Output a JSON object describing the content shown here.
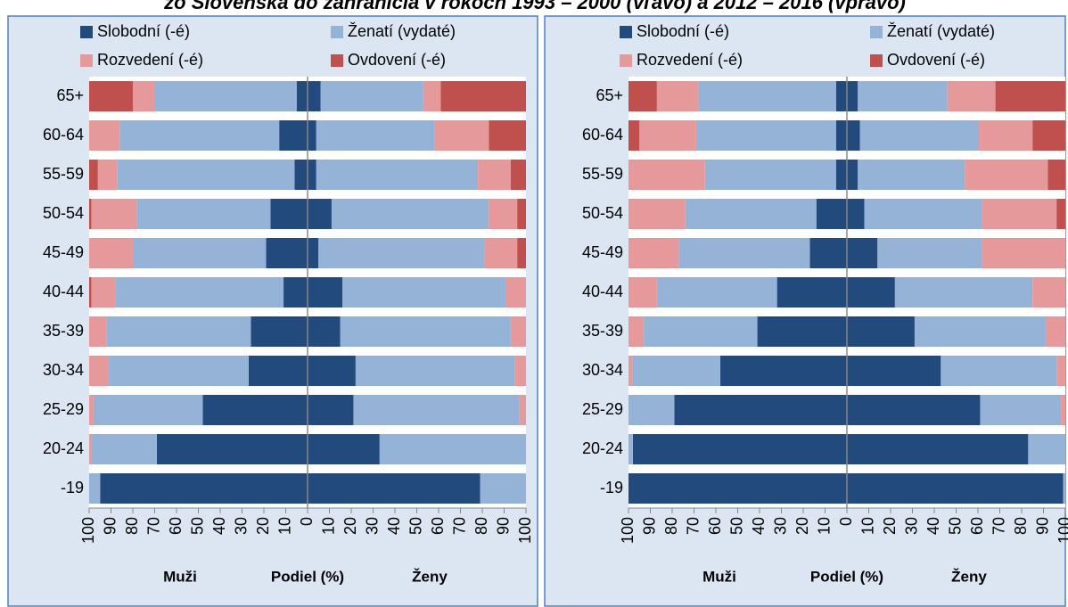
{
  "title": "zo Slovenska do zahraničia v rokoch 1993 – 2000 (vľavo) a 2012 – 2016 (vpravo)",
  "chart_data": [
    {
      "type": "butterfly_bar",
      "orientation": "horizontal",
      "categories": [
        "-19",
        "20-24",
        "25-29",
        "30-34",
        "35-39",
        "40-44",
        "45-49",
        "50-54",
        "55-59",
        "60-64",
        "65+"
      ],
      "series": [
        {
          "name": "Slobodní (-é)",
          "color": "#234a7c",
          "men_values": [
            95,
            69,
            48,
            27,
            26,
            11,
            19,
            17,
            6,
            13,
            5
          ],
          "women_values": [
            79,
            33,
            21,
            22,
            15,
            16,
            5,
            11,
            4,
            4,
            6
          ]
        },
        {
          "name": "Ženatí (vydaté)",
          "color": "#95b3d7",
          "men_values": [
            5,
            30,
            50,
            64,
            66,
            77,
            61,
            61,
            81,
            73,
            65
          ],
          "women_values": [
            21,
            67,
            76,
            73,
            78,
            75,
            76,
            72,
            74,
            54,
            47
          ]
        },
        {
          "name": "Rozvedení (-é)",
          "color": "#e6999a",
          "men_values": [
            0,
            1,
            2,
            9,
            8,
            11,
            20,
            21,
            9,
            14,
            10
          ],
          "women_values": [
            0,
            0,
            3,
            5,
            7,
            9,
            15,
            13,
            15,
            25,
            8
          ]
        },
        {
          "name": "Ovdovení (-é)",
          "color": "#c0504d",
          "men_values": [
            0,
            0,
            0,
            0,
            0,
            1,
            0,
            1,
            4,
            0,
            20
          ],
          "women_values": [
            0,
            0,
            0,
            0,
            0,
            0,
            4,
            4,
            7,
            17,
            39
          ]
        }
      ],
      "xlim": [
        -100,
        100
      ],
      "xticks": [
        {
          "value": -100,
          "label": "100"
        },
        {
          "value": -90,
          "label": "90"
        },
        {
          "value": -80,
          "label": "80"
        },
        {
          "value": -70,
          "label": "70"
        },
        {
          "value": -60,
          "label": "60"
        },
        {
          "value": -50,
          "label": "50"
        },
        {
          "value": -40,
          "label": "40"
        },
        {
          "value": -30,
          "label": "30"
        },
        {
          "value": -20,
          "label": "20"
        },
        {
          "value": -10,
          "label": "10"
        },
        0,
        10,
        20,
        30,
        40,
        50,
        60,
        70,
        80,
        90,
        100
      ],
      "left_label": "Muži",
      "xlabel": "Podiel (%)",
      "right_label": "Ženy"
    },
    {
      "type": "butterfly_bar",
      "orientation": "horizontal",
      "categories": [
        "-19",
        "20-24",
        "25-29",
        "30-34",
        "35-39",
        "40-44",
        "45-49",
        "50-54",
        "55-59",
        "60-64",
        "65+"
      ],
      "series": [
        {
          "name": "Slobodní (-é)",
          "color": "#234a7c",
          "men_values": [
            100,
            98,
            79,
            58,
            41,
            32,
            17,
            14,
            5,
            5,
            5
          ],
          "women_values": [
            99,
            83,
            61,
            43,
            31,
            22,
            14,
            8,
            5,
            6,
            5
          ]
        },
        {
          "name": "Ženatí (vydaté)",
          "color": "#95b3d7",
          "men_values": [
            0,
            2,
            21,
            40,
            52,
            55,
            60,
            60,
            60,
            64,
            63
          ],
          "women_values": [
            1,
            17,
            37,
            53,
            60,
            63,
            48,
            54,
            49,
            54,
            41
          ]
        },
        {
          "name": "Rozvedení (-é)",
          "color": "#e6999a",
          "men_values": [
            0,
            0,
            0,
            2,
            7,
            13,
            23,
            26,
            35,
            26,
            19
          ],
          "women_values": [
            0,
            0,
            2,
            4,
            9,
            15,
            38,
            34,
            38,
            25,
            22
          ]
        },
        {
          "name": "Ovdovení (-é)",
          "color": "#c0504d",
          "men_values": [
            0,
            0,
            0,
            0,
            0,
            0,
            0,
            0,
            0,
            5,
            13
          ],
          "women_values": [
            0,
            0,
            0,
            0,
            0,
            0,
            0,
            4,
            8,
            15,
            32
          ]
        }
      ],
      "xlim": [
        -100,
        100
      ],
      "xticks": [
        {
          "value": -100,
          "label": "100"
        },
        {
          "value": -90,
          "label": "90"
        },
        {
          "value": -80,
          "label": "80"
        },
        {
          "value": -70,
          "label": "70"
        },
        {
          "value": -60,
          "label": "60"
        },
        {
          "value": -50,
          "label": "50"
        },
        {
          "value": -40,
          "label": "40"
        },
        {
          "value": -30,
          "label": "30"
        },
        {
          "value": -20,
          "label": "20"
        },
        {
          "value": -10,
          "label": "10"
        },
        0,
        10,
        20,
        30,
        40,
        50,
        60,
        70,
        80,
        90,
        100
      ],
      "left_label": "Muži",
      "xlabel": "Podiel (%)",
      "right_label": "Ženy"
    }
  ]
}
